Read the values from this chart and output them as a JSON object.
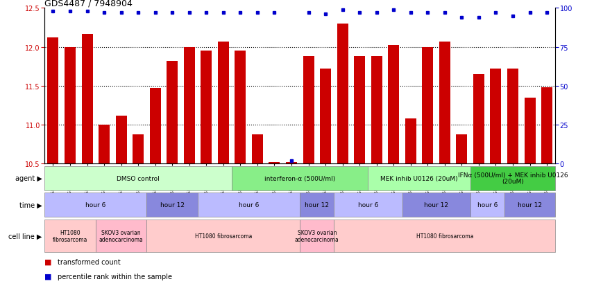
{
  "title": "GDS4487 / 7948904",
  "samples": [
    "GSM768611",
    "GSM768612",
    "GSM768613",
    "GSM768635",
    "GSM768636",
    "GSM768637",
    "GSM768614",
    "GSM768615",
    "GSM768616",
    "GSM768617",
    "GSM768618",
    "GSM768619",
    "GSM768638",
    "GSM768639",
    "GSM768640",
    "GSM768620",
    "GSM768621",
    "GSM768622",
    "GSM768623",
    "GSM768624",
    "GSM768625",
    "GSM768626",
    "GSM768627",
    "GSM768628",
    "GSM768629",
    "GSM768630",
    "GSM768631",
    "GSM768632",
    "GSM768633",
    "GSM768634"
  ],
  "bar_values": [
    12.12,
    12.0,
    12.17,
    11.0,
    11.12,
    10.88,
    11.47,
    11.82,
    12.0,
    11.95,
    12.07,
    11.95,
    10.88,
    10.52,
    10.52,
    11.88,
    11.72,
    12.3,
    11.88,
    11.88,
    12.02,
    11.08,
    12.0,
    12.07,
    10.88,
    11.65,
    11.72,
    11.72,
    11.35,
    11.48
  ],
  "percentile_values": [
    98,
    98,
    98,
    97,
    97,
    97,
    97,
    97,
    97,
    97,
    97,
    97,
    97,
    97,
    2,
    97,
    96,
    99,
    97,
    97,
    99,
    97,
    97,
    97,
    94,
    94,
    97,
    95,
    97,
    97
  ],
  "ylim_left": [
    10.5,
    12.5
  ],
  "ylim_right": [
    0,
    100
  ],
  "yticks_left": [
    10.5,
    11.0,
    11.5,
    12.0,
    12.5
  ],
  "yticks_right": [
    0,
    25,
    50,
    75,
    100
  ],
  "bar_color": "#cc0000",
  "dot_color": "#0000cc",
  "agent_groups": [
    {
      "label": "DMSO control",
      "start": 0,
      "end": 11,
      "color": "#ccffcc"
    },
    {
      "label": "interferon-α (500U/ml)",
      "start": 11,
      "end": 19,
      "color": "#88ee88"
    },
    {
      "label": "MEK inhib U0126 (20uM)",
      "start": 19,
      "end": 25,
      "color": "#aaffaa"
    },
    {
      "label": "IFNα (500U/ml) + MEK inhib U0126\n(20uM)",
      "start": 25,
      "end": 30,
      "color": "#44cc44"
    }
  ],
  "time_groups": [
    {
      "label": "hour 6",
      "start": 0,
      "end": 6,
      "color": "#bbbbff"
    },
    {
      "label": "hour 12",
      "start": 6,
      "end": 9,
      "color": "#8888dd"
    },
    {
      "label": "hour 6",
      "start": 9,
      "end": 15,
      "color": "#bbbbff"
    },
    {
      "label": "hour 12",
      "start": 15,
      "end": 17,
      "color": "#8888dd"
    },
    {
      "label": "hour 6",
      "start": 17,
      "end": 21,
      "color": "#bbbbff"
    },
    {
      "label": "hour 12",
      "start": 21,
      "end": 25,
      "color": "#8888dd"
    },
    {
      "label": "hour 6",
      "start": 25,
      "end": 27,
      "color": "#bbbbff"
    },
    {
      "label": "hour 12",
      "start": 27,
      "end": 30,
      "color": "#8888dd"
    }
  ],
  "cellline_groups": [
    {
      "label": "HT1080\nfibrosarcoma",
      "start": 0,
      "end": 3,
      "color": "#ffcccc"
    },
    {
      "label": "SKOV3 ovarian\nadenocarcinoma",
      "start": 3,
      "end": 6,
      "color": "#ffbbcc"
    },
    {
      "label": "HT1080 fibrosarcoma",
      "start": 6,
      "end": 15,
      "color": "#ffcccc"
    },
    {
      "label": "SKOV3 ovarian\nadenocarcinoma",
      "start": 15,
      "end": 17,
      "color": "#ffbbcc"
    },
    {
      "label": "HT1080 fibrosarcoma",
      "start": 17,
      "end": 30,
      "color": "#ffcccc"
    }
  ]
}
